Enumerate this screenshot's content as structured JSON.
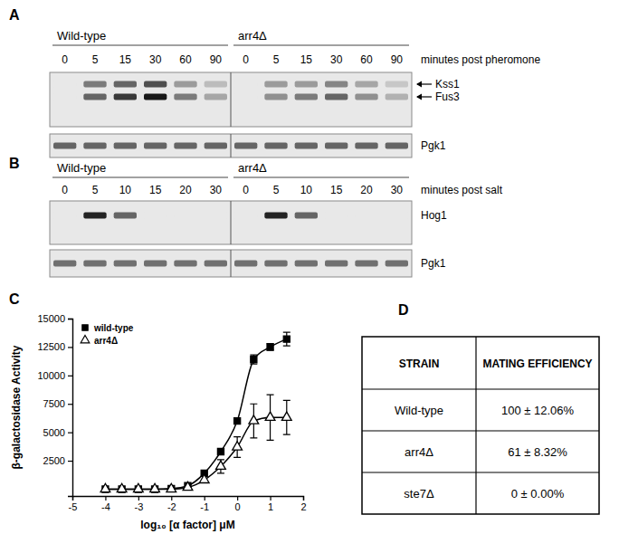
{
  "chart_data": {
    "type": "line",
    "x_label": "log₁₀ [α factor] μM",
    "y_label": "β-galactosidase Activity",
    "x": [
      -4,
      -3.5,
      -3,
      -2.5,
      -2,
      -1.5,
      -1,
      -0.5,
      0,
      0.5,
      1,
      1.5
    ],
    "series": [
      {
        "name": "wild-type",
        "color": "#000000",
        "marker": "square",
        "values": [
          0,
          0,
          0,
          0,
          50,
          300,
          1400,
          3300,
          6000,
          11400,
          12500,
          13200
        ],
        "errors": [
          null,
          null,
          null,
          null,
          null,
          null,
          null,
          null,
          null,
          400,
          300,
          600
        ]
      },
      {
        "name": "arr4Δ",
        "color": "#000000",
        "marker": "triangle-open",
        "values": [
          0,
          0,
          0,
          0,
          0,
          150,
          800,
          2000,
          3700,
          6000,
          6300,
          6300
        ],
        "errors": [
          null,
          null,
          null,
          null,
          null,
          null,
          null,
          600,
          900,
          1500,
          2000,
          1500
        ]
      }
    ],
    "xlim": [
      -5,
      2
    ],
    "xticks": [
      -5,
      -4,
      -3,
      -2,
      -1,
      0,
      1,
      2
    ],
    "ylim": [
      -600,
      15000
    ],
    "yticks": [
      2500,
      5000,
      7500,
      10000,
      12500,
      15000
    ],
    "legend": "upper left",
    "grid": false
  },
  "figure": {
    "panel_labels": [
      "A",
      "B",
      "C",
      "D"
    ]
  },
  "blots": [
    {
      "groups": [
        "Wild-type",
        "arr4Δ"
      ],
      "times": [
        0,
        5,
        15,
        30,
        60,
        90
      ],
      "time_label": "minutes post pheromone",
      "rows": [
        {
          "bands": [
            {
              "label": "Kss1",
              "intensity": [
                0,
                0.5,
                0.6,
                0.7,
                0.35,
                0.2,
                0,
                0.35,
                0.35,
                0.45,
                0.3,
                0.15
              ]
            },
            {
              "label": "Fus3",
              "intensity": [
                0,
                0.6,
                0.8,
                0.95,
                0.5,
                0.3,
                0,
                0.4,
                0.5,
                0.6,
                0.4,
                0.25
              ]
            }
          ]
        },
        {
          "bands": [
            {
              "label": "Pgk1",
              "intensity": [
                0.6,
                0.6,
                0.6,
                0.6,
                0.6,
                0.6,
                0.6,
                0.6,
                0.6,
                0.6,
                0.6,
                0.6
              ]
            }
          ]
        }
      ]
    },
    {
      "groups": [
        "Wild-type",
        "arr4Δ"
      ],
      "times": [
        0,
        5,
        10,
        15,
        20,
        30
      ],
      "time_label": "minutes post salt",
      "rows": [
        {
          "bands": [
            {
              "label": "Hog1",
              "intensity": [
                0,
                0.9,
                0.6,
                0,
                0,
                0,
                0,
                0.9,
                0.6,
                0,
                0,
                0
              ]
            }
          ]
        },
        {
          "bands": [
            {
              "label": "Pgk1",
              "intensity": [
                0.55,
                0.55,
                0.55,
                0.55,
                0.55,
                0.55,
                0.55,
                0.55,
                0.55,
                0.55,
                0.55,
                0.55
              ]
            }
          ]
        }
      ]
    }
  ],
  "table": {
    "header": [
      "STRAIN",
      "MATING EFFICIENCY"
    ],
    "rows": [
      [
        "Wild-type",
        "100 ± 12.06%"
      ],
      [
        "arr4Δ",
        "61 ± 8.32%"
      ],
      [
        "ste7Δ",
        "0 ± 0.00%"
      ]
    ]
  }
}
